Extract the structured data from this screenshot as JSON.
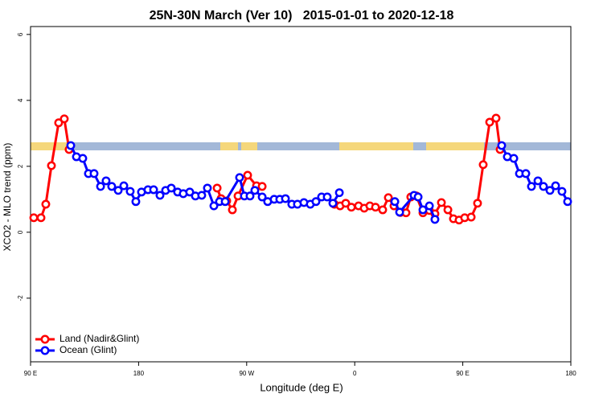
{
  "chart_data": {
    "type": "line",
    "title": "25N-30N March (Ver 10)   2015-01-01 to 2020-12-18",
    "xlabel": "Longitude (deg E)",
    "ylabel": "XCO2 - MLO trend (ppm)",
    "xlim": [
      90,
      540
    ],
    "ylim": [
      -3.93,
      6.24
    ],
    "xticks": [
      {
        "value": 90,
        "label": "90 E"
      },
      180,
      {
        "value": 270,
        "label": "90 W"
      },
      {
        "value": 360,
        "label": "0"
      },
      {
        "value": 450,
        "label": "90 E"
      },
      {
        "value": 540,
        "label": "180"
      }
    ],
    "yticks": [
      -2,
      0,
      2,
      4,
      6
    ],
    "legend": "bottom-left",
    "series": [
      {
        "name": "Land (Nadir&Glint)",
        "color": "#ff0000",
        "x": [
          92.7,
          98.7,
          102.7,
          107.4,
          113.4,
          118.1,
          122.1,
          null,
          245.4,
          248.7,
          253.4,
          258.1,
          262.8,
          270.8,
          278.2,
          282.9,
          null,
          343.1,
          347.8,
          352.5,
          357.2,
          363.2,
          367.9,
          372.6,
          377.3,
          383.3,
          388.0,
          392.7,
          398.0,
          402.7,
          406.7,
          411.4,
          416.8,
          422.2,
          426.8,
          432.2,
          437.6,
          442.2,
          446.9,
          451.6,
          457.0,
          462.3,
          467.0,
          472.4,
          477.7,
          481.1
        ],
        "values": [
          0.44,
          0.44,
          0.85,
          2.02,
          3.32,
          3.44,
          2.51,
          null,
          1.34,
          1.02,
          0.95,
          0.68,
          1.1,
          1.73,
          1.41,
          1.39,
          null,
          0.85,
          0.8,
          0.88,
          0.76,
          0.8,
          0.73,
          0.8,
          0.76,
          0.68,
          1.05,
          0.8,
          0.6,
          0.59,
          1.07,
          1.1,
          0.59,
          0.66,
          0.56,
          0.9,
          0.68,
          0.41,
          0.37,
          0.44,
          0.46,
          0.88,
          2.05,
          3.34,
          3.46,
          2.51
        ]
      },
      {
        "name": "Ocean (Glint)",
        "color": "#0000ff",
        "x": [
          123.5,
          128.2,
          133.5,
          138.2,
          142.9,
          148.3,
          152.9,
          157.6,
          163.0,
          167.7,
          173.0,
          177.7,
          182.4,
          187.8,
          192.5,
          197.8,
          202.5,
          207.2,
          212.5,
          217.2,
          222.6,
          227.3,
          232.6,
          237.3,
          242.7,
          247.4,
          252.1,
          264.1,
          268.1,
          272.8,
          276.8,
          282.9,
          287.5,
          292.9,
          297.6,
          302.3,
          307.6,
          312.3,
          317.7,
          323.0,
          327.7,
          332.4,
          337.1,
          341.8,
          347.2,
          null,
          393.4,
          397.4,
          409.4,
          412.8,
          416.8,
          422.2,
          426.8,
          null,
          482.4,
          487.1,
          492.5,
          497.2,
          502.5,
          507.2,
          512.6,
          517.2,
          522.6,
          527.3,
          532.6,
          537.3
        ],
        "values": [
          2.63,
          2.29,
          2.24,
          1.78,
          1.78,
          1.39,
          1.56,
          1.39,
          1.27,
          1.41,
          1.24,
          0.93,
          1.22,
          1.29,
          1.29,
          1.12,
          1.27,
          1.34,
          1.22,
          1.17,
          1.22,
          1.1,
          1.12,
          1.34,
          0.8,
          0.93,
          0.93,
          1.66,
          1.1,
          1.1,
          1.27,
          1.07,
          0.93,
          1.0,
          1.0,
          1.02,
          0.85,
          0.85,
          0.9,
          0.85,
          0.93,
          1.07,
          1.07,
          0.88,
          1.2,
          null,
          0.93,
          0.61,
          1.12,
          1.07,
          0.68,
          0.8,
          0.39,
          null,
          2.63,
          2.29,
          2.24,
          1.78,
          1.78,
          1.39,
          1.56,
          1.39,
          1.27,
          1.41,
          1.24,
          0.93
        ]
      }
    ]
  }
}
